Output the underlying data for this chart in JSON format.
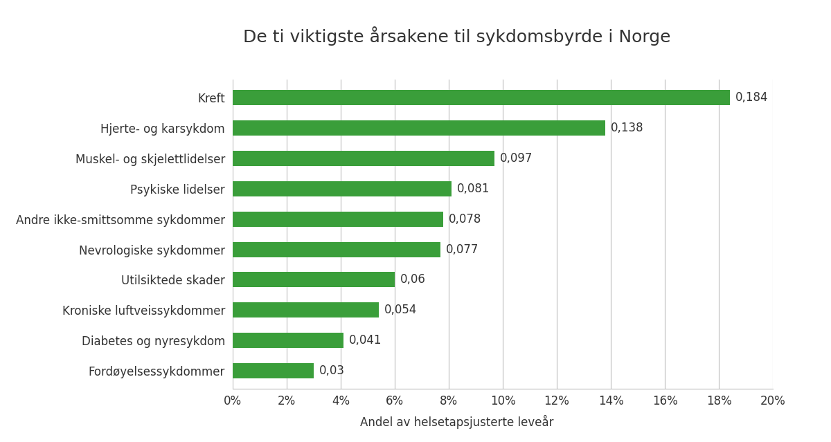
{
  "title": "De ti viktigste årsakene til sykdomsbyrde i Norge",
  "xlabel": "Andel av helsetapsjusterte leveår",
  "categories": [
    "Fordøyelsessykdommer",
    "Diabetes og nyresykdom",
    "Kroniske luftveissykdommer",
    "Utilsiktede skader",
    "Nevrologiske sykdommer",
    "Andre ikke-smittsomme sykdommer",
    "Psykiske lidelser",
    "Muskel- og skjelettlidelser",
    "Hjerte- og karsykdom",
    "Kreft"
  ],
  "values": [
    0.03,
    0.041,
    0.054,
    0.06,
    0.077,
    0.078,
    0.081,
    0.097,
    0.138,
    0.184
  ],
  "bar_color": "#3a9e3a",
  "label_color": "#333333",
  "background_color": "#ffffff",
  "xlim": [
    0,
    0.2
  ],
  "xtick_values": [
    0,
    0.02,
    0.04,
    0.06,
    0.08,
    0.1,
    0.12,
    0.14,
    0.16,
    0.18,
    0.2
  ],
  "xtick_labels": [
    "0%",
    "2%",
    "4%",
    "6%",
    "8%",
    "10%",
    "12%",
    "14%",
    "16%",
    "18%",
    "20%"
  ],
  "title_fontsize": 18,
  "label_fontsize": 12,
  "tick_fontsize": 12,
  "value_fontsize": 12,
  "bar_height": 0.5,
  "grid_color": "#bbbbbb"
}
